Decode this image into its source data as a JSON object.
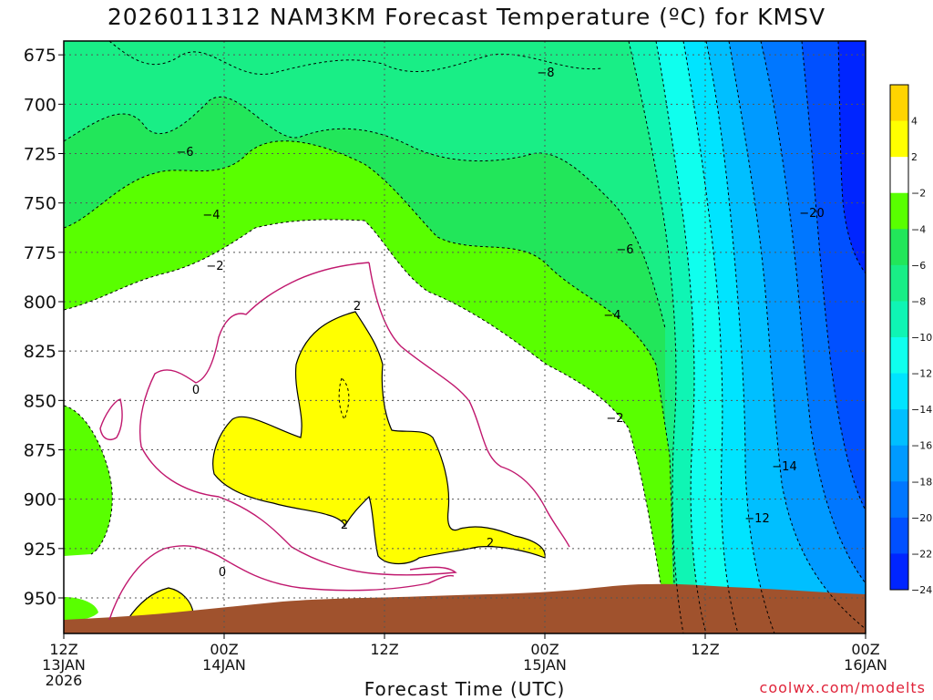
{
  "title": "2026011312 NAM3KM Forecast Temperature (ºC) for KMSV",
  "credit": "coolwx.com/modelts",
  "chart_data": {
    "type": "contour",
    "title": "2026011312 NAM3KM Forecast Temperature (ºC) for KMSV",
    "xlabel": "Forecast Time (UTC)",
    "ylabel": "",
    "y_axis": {
      "ticks": [
        675,
        700,
        725,
        750,
        775,
        800,
        825,
        850,
        875,
        900,
        925,
        950
      ],
      "range": [
        968,
        668
      ],
      "direction": "pressure decreasing upward"
    },
    "x_axis": {
      "ticks": [
        {
          "line1": "12Z",
          "line2": "13JAN",
          "line3": "2026"
        },
        {
          "line1": "00Z",
          "line2": "14JAN",
          "line3": ""
        },
        {
          "line1": "12Z",
          "line2": "",
          "line3": ""
        },
        {
          "line1": "00Z",
          "line2": "15JAN",
          "line3": ""
        },
        {
          "line1": "12Z",
          "line2": "",
          "line3": ""
        },
        {
          "line1": "00Z",
          "line2": "16JAN",
          "line3": ""
        }
      ],
      "range_hours": [
        0,
        60
      ]
    },
    "grid": true,
    "colorbar": {
      "labels": [
        "4",
        "2",
        "−2",
        "−4",
        "−6",
        "−8",
        "−10",
        "−12",
        "−14",
        "−16",
        "−18",
        "−20",
        "−22",
        "−24"
      ],
      "colors": [
        "#ffd400",
        "#ffff00",
        "#ffffff",
        "#59ff00",
        "#22e65a",
        "#19ee86",
        "#0ff5b4",
        "#0fffee",
        "#00e4ff",
        "#00bfff",
        "#009aff",
        "#0077ff",
        "#0050ff",
        "#0025ff"
      ]
    },
    "contour_labels": [
      "−8",
      "−6",
      "−4",
      "−2",
      "0",
      "2",
      "2",
      "2",
      "0",
      "−6",
      "−4",
      "−2",
      "−20",
      "−14",
      "−12"
    ],
    "terrain_color": "#a0522d"
  }
}
